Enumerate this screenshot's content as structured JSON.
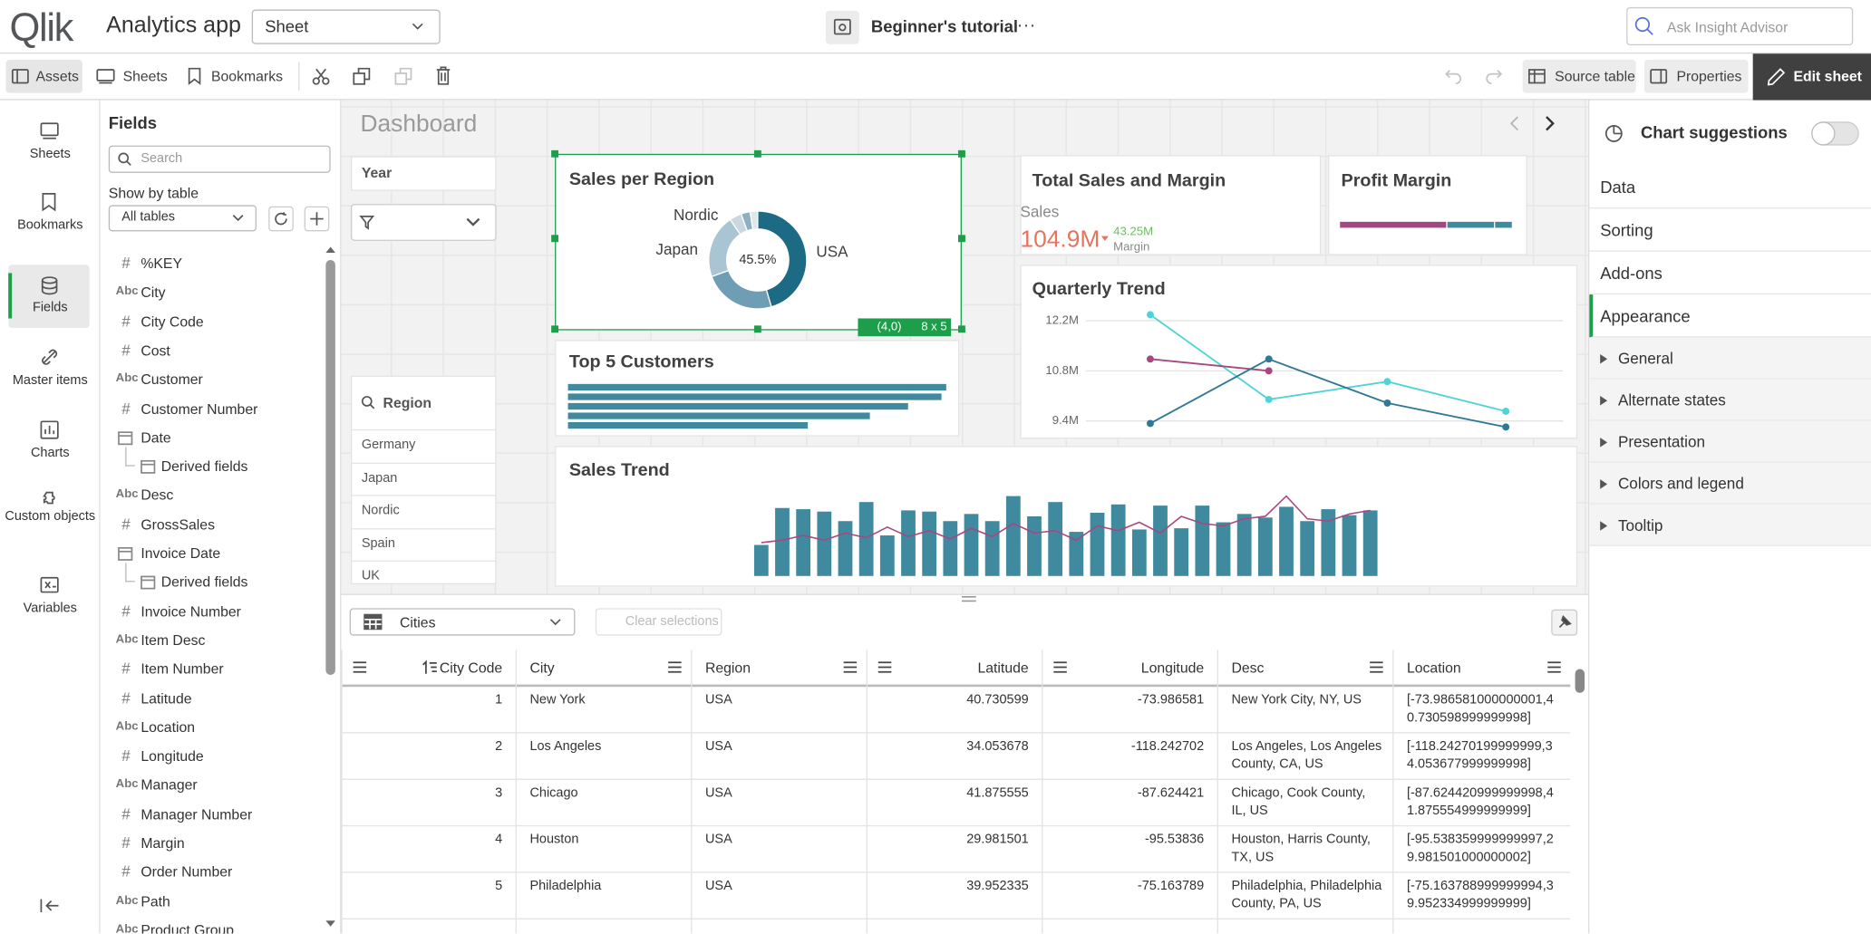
{
  "header": {
    "logo": "Qlik",
    "app_title": "Analytics app",
    "sheet_select": "Sheet",
    "tutorial": "Beginner's tutorial",
    "more": "···",
    "search": "Ask Insight Advisor"
  },
  "toolbar": {
    "assets": "Assets",
    "sheets": "Sheets",
    "bookmarks": "Bookmarks",
    "source_table": "Source table",
    "properties": "Properties",
    "edit_sheet": "Edit sheet"
  },
  "nav": [
    "Sheets",
    "Bookmarks",
    "Fields",
    "Master items",
    "Charts",
    "Custom objects",
    "Variables"
  ],
  "nav_active_index": 2,
  "fields_panel": {
    "title": "Fields",
    "search": "Search",
    "show_by_table": "Show by table",
    "table_select": "All tables",
    "fields": [
      {
        "icon": "#",
        "name": "%KEY"
      },
      {
        "icon": "Abc",
        "name": "City"
      },
      {
        "icon": "#",
        "name": "City Code"
      },
      {
        "icon": "#",
        "name": "Cost"
      },
      {
        "icon": "Abc",
        "name": "Customer"
      },
      {
        "icon": "#",
        "name": "Customer Number"
      },
      {
        "date": true,
        "name": "Date"
      },
      {
        "derived": true,
        "name": "Derived fields"
      },
      {
        "icon": "Abc",
        "name": "Desc"
      },
      {
        "icon": "#",
        "name": "GrossSales"
      },
      {
        "date": true,
        "name": "Invoice Date"
      },
      {
        "derived": true,
        "name": "Derived fields"
      },
      {
        "icon": "#",
        "name": "Invoice Number"
      },
      {
        "icon": "Abc",
        "name": "Item Desc"
      },
      {
        "icon": "#",
        "name": "Item Number"
      },
      {
        "icon": "#",
        "name": "Latitude"
      },
      {
        "icon": "Abc",
        "name": "Location"
      },
      {
        "icon": "#",
        "name": "Longitude"
      },
      {
        "icon": "Abc",
        "name": "Manager"
      },
      {
        "icon": "#",
        "name": "Manager Number"
      },
      {
        "icon": "#",
        "name": "Margin"
      },
      {
        "icon": "#",
        "name": "Order Number"
      },
      {
        "icon": "Abc",
        "name": "Path"
      },
      {
        "icon": "Abc",
        "name": "Product Group"
      }
    ]
  },
  "sheet": {
    "title": "Dashboard",
    "year_filter": "Year",
    "region_filter": {
      "title": "Region",
      "values": [
        "Germany",
        "Japan",
        "Nordic",
        "Spain",
        "UK"
      ]
    },
    "sales_per_region": {
      "type": "pie",
      "title": "Sales per Region",
      "categories": [
        "USA",
        "Japan",
        "Nordic",
        null,
        null,
        null
      ],
      "values": [
        45.5,
        24,
        21,
        4,
        3,
        2.5
      ],
      "value_labels": [
        "45.5%",
        null,
        null,
        null,
        null,
        null
      ],
      "colors": [
        "#1d6a84",
        "#6f9db3",
        "#a9c4d2",
        "#c9d8e0",
        "#8fb0c1",
        "#dde7ec"
      ],
      "badge_position": "(4,0)",
      "badge_size": "8 x 5"
    },
    "top_customers": {
      "type": "bar",
      "title": "Top 5 Customers",
      "values": [
        317,
        313,
        285,
        253,
        201
      ],
      "color": "#3f8a9e"
    },
    "total_sales": {
      "title": "Total Sales and Margin",
      "label": "Sales",
      "value": "104.9M",
      "secondary_value": "43.25M",
      "secondary_label": "Margin"
    },
    "profit_margin": {
      "type": "bar",
      "title": "Profit Margin",
      "values": [
        90,
        40,
        15
      ],
      "colors": [
        "#a0487f",
        "#3f8a9e",
        "#3f8a9e"
      ]
    },
    "quarterly_trend": {
      "type": "line",
      "title": "Quarterly Trend",
      "categories": [
        null,
        null,
        null,
        null
      ],
      "ylim": [
        9150000,
        12450000
      ],
      "yticks": [
        {
          "value": 12200000,
          "label": "12.2M"
        },
        {
          "value": 10800000,
          "label": "10.8M"
        },
        {
          "value": 9400000,
          "label": "9.4M"
        }
      ],
      "grid": true,
      "series": [
        {
          "color": "#4fd3d9",
          "values": [
            12370000,
            10000000,
            10500000,
            9670000
          ]
        },
        {
          "color": "#a8477f",
          "values": [
            11130000,
            10800000,
            null,
            null
          ]
        },
        {
          "color": "#2f7896",
          "values": [
            9330000,
            11130000,
            9900000,
            9230000
          ]
        }
      ]
    },
    "sales_trend": {
      "type": "bar",
      "title": "Sales Trend",
      "values": [
        26,
        57,
        56,
        54,
        46,
        62,
        34,
        55,
        54,
        46,
        52,
        46,
        67,
        50,
        62,
        37,
        53,
        60,
        39,
        59,
        40,
        59,
        45,
        52,
        49,
        58,
        46,
        56,
        51,
        55
      ],
      "line_values": [
        28,
        30,
        34,
        30,
        36,
        32,
        41,
        33,
        38,
        31,
        40,
        33,
        44,
        36,
        38,
        30,
        42,
        38,
        45,
        36,
        50,
        44,
        42,
        48,
        50,
        67,
        48,
        46,
        52,
        55
      ],
      "color": "#3f8a9e",
      "line_color": "#a8477f"
    }
  },
  "table": {
    "select": "Cities",
    "clear": "Clear selections",
    "columns": [
      "City Code",
      "City",
      "Region",
      "Latitude",
      "Longitude",
      "Desc",
      "Location"
    ],
    "rows": [
      [
        1,
        "New York",
        "USA",
        40.730599,
        -73.986581,
        "New York City, NY, US",
        "[-73.986581000000001,40.730598999999998]"
      ],
      [
        2,
        "Los Angeles",
        "USA",
        34.053678,
        -118.242702,
        "Los Angeles, Los Angeles County, CA, US",
        "[-118.24270199999999,34.053677999999998]"
      ],
      [
        3,
        "Chicago",
        "USA",
        41.875555,
        -87.624421,
        "Chicago, Cook County, IL, US",
        "[-87.624420999999998,41.875554999999999]"
      ],
      [
        4,
        "Houston",
        "USA",
        29.981501,
        -95.53836,
        "Houston, Harris County, TX, US",
        "[-95.538359999999997,29.981501000000002]"
      ],
      [
        5,
        "Philadelphia",
        "USA",
        39.952335,
        -75.163789,
        "Philadelphia, Philadelphia County, PA, US",
        "[-75.163788999999994,39.952334999999999]"
      ]
    ]
  },
  "properties": {
    "chart_suggestions": "Chart suggestions",
    "sections": [
      "Data",
      "Sorting",
      "Add-ons",
      "Appearance"
    ],
    "active_section_index": 3,
    "groups": [
      "General",
      "Alternate states",
      "Presentation",
      "Colors and legend",
      "Tooltip"
    ]
  }
}
